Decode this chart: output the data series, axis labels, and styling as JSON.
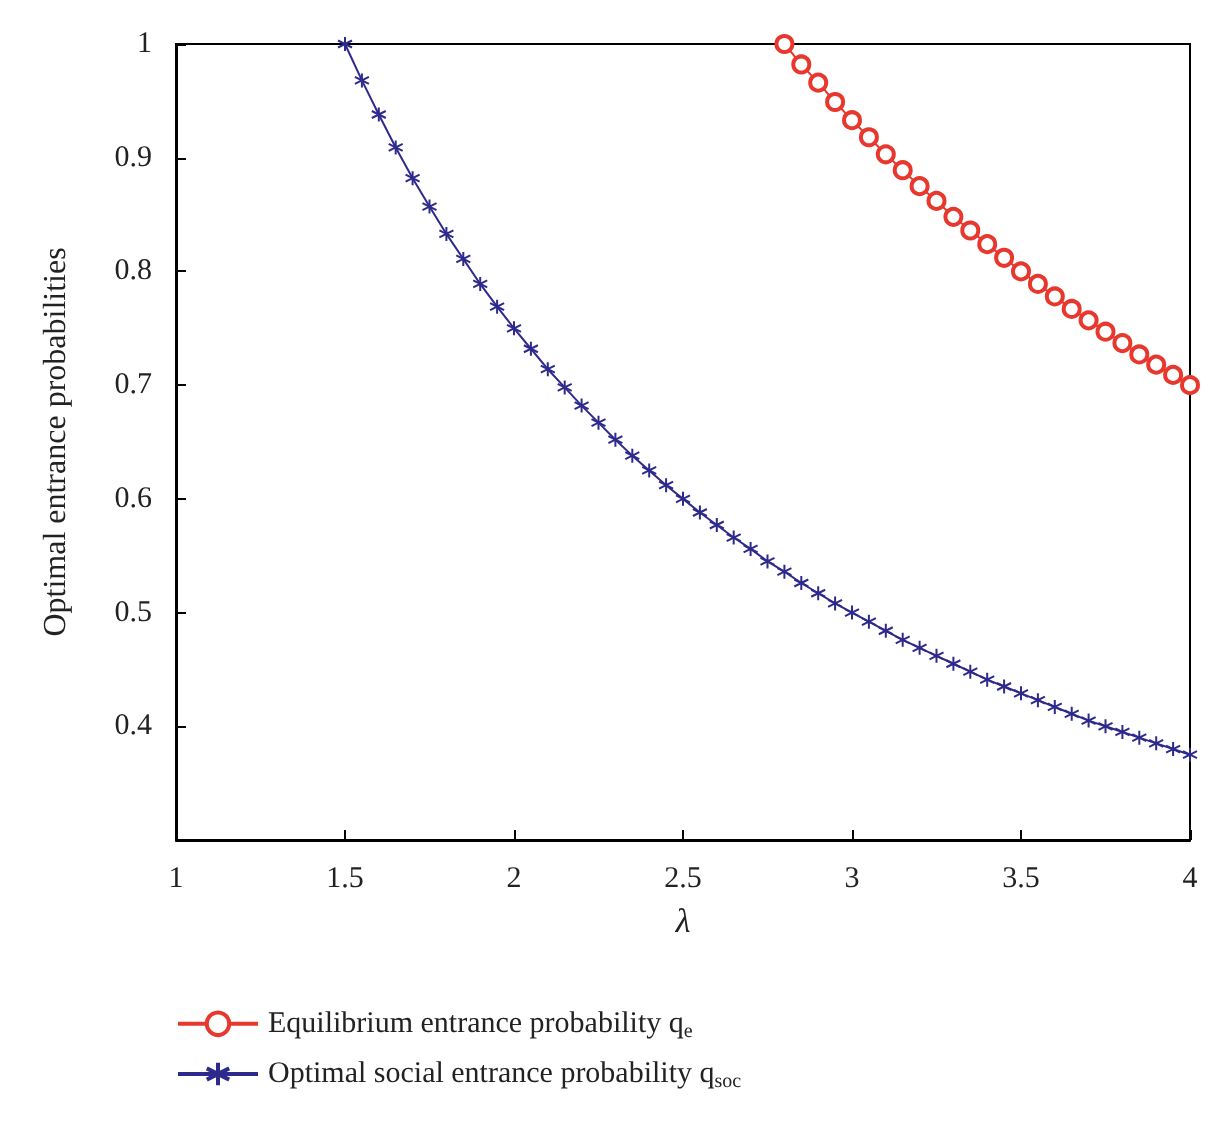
{
  "chart_data": {
    "type": "line",
    "xlabel": "λ",
    "ylabel": "Optimal entrance probabilities",
    "xlim": [
      1,
      4
    ],
    "xticks": [
      1,
      1.5,
      2,
      2.5,
      3,
      3.5,
      4
    ],
    "ylim": [
      0.3,
      1
    ],
    "yticks": [
      0.4,
      0.5,
      0.6,
      0.7,
      0.8,
      0.9,
      1
    ],
    "grid": false,
    "legend": "bottom",
    "line_style": "solid",
    "series": [
      {
        "name": "Equilibrium entrance probability q$_{e}$",
        "color": "#e8382e",
        "marker": "circle",
        "x": [
          2.8,
          2.85,
          2.9,
          2.95,
          3.0,
          3.05,
          3.1,
          3.15,
          3.2,
          3.25,
          3.3,
          3.35,
          3.4,
          3.45,
          3.5,
          3.55,
          3.6,
          3.65,
          3.7,
          3.75,
          3.8,
          3.85,
          3.9,
          3.95,
          4.0
        ],
        "values": [
          1.0,
          0.982,
          0.966,
          0.949,
          0.933,
          0.918,
          0.903,
          0.889,
          0.875,
          0.862,
          0.848,
          0.836,
          0.824,
          0.812,
          0.8,
          0.789,
          0.778,
          0.767,
          0.757,
          0.747,
          0.737,
          0.727,
          0.718,
          0.709,
          0.7
        ]
      },
      {
        "name": "Optimal social entrance probability q$_{soc}$",
        "color": "#2e2a8c",
        "marker": "cross",
        "x": [
          1.5,
          1.55,
          1.6,
          1.65,
          1.7,
          1.75,
          1.8,
          1.85,
          1.9,
          1.95,
          2.0,
          2.05,
          2.1,
          2.15,
          2.2,
          2.25,
          2.3,
          2.35,
          2.4,
          2.45,
          2.5,
          2.55,
          2.6,
          2.65,
          2.7,
          2.75,
          2.8,
          2.85,
          2.9,
          2.95,
          3.0,
          3.05,
          3.1,
          3.15,
          3.2,
          3.25,
          3.3,
          3.35,
          3.4,
          3.45,
          3.5,
          3.55,
          3.6,
          3.65,
          3.7,
          3.75,
          3.8,
          3.85,
          3.9,
          3.95,
          4.0
        ],
        "values": [
          1.0,
          0.968,
          0.938,
          0.909,
          0.882,
          0.857,
          0.833,
          0.811,
          0.789,
          0.769,
          0.75,
          0.732,
          0.714,
          0.698,
          0.682,
          0.667,
          0.652,
          0.638,
          0.625,
          0.612,
          0.6,
          0.588,
          0.577,
          0.566,
          0.556,
          0.545,
          0.536,
          0.526,
          0.517,
          0.508,
          0.5,
          0.492,
          0.484,
          0.476,
          0.469,
          0.462,
          0.455,
          0.448,
          0.441,
          0.435,
          0.429,
          0.423,
          0.417,
          0.411,
          0.405,
          0.4,
          0.395,
          0.39,
          0.385,
          0.38,
          0.375
        ]
      }
    ]
  }
}
